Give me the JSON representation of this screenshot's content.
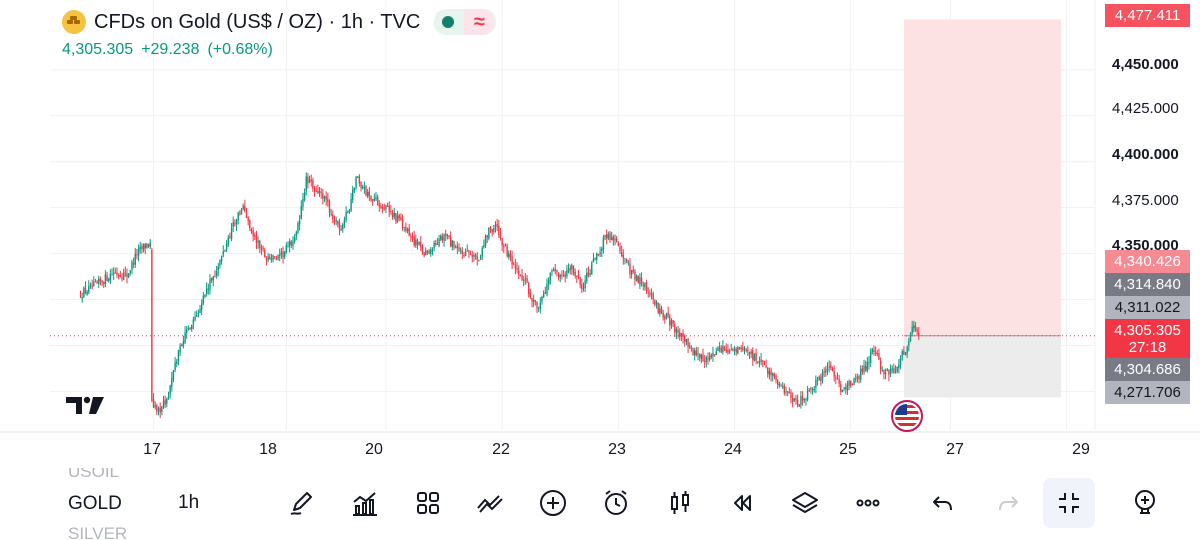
{
  "legend": {
    "title": "CFDs on Gold (US$ / OZ) · 1h · TVC",
    "last": "4,305.305",
    "change": "+29.238",
    "change_pct": "(+0.68%)",
    "wave_symbol": "≈"
  },
  "price_tags": {
    "target": "4,477.411",
    "stop": "4,340.426",
    "t1": "4,314.840",
    "t2": "4,311.022",
    "current": "4,305.305",
    "countdown": "27:18",
    "t3": "4,304.686",
    "t4": "4,271.706"
  },
  "colors": {
    "up": "#089981",
    "down": "#f23645",
    "loss_zone": "#fde2e4",
    "profit_zone": "#ececec",
    "tag_red": "#f7525f",
    "tag_red_light": "#f58a92",
    "tag_gray": "#787b86",
    "tag_gray_light": "#b2b5be"
  },
  "toolbar": {
    "symbol_prev": "USOIL",
    "symbol": "GOLD",
    "symbol_next": "SILVER",
    "timeframe": "1h",
    "tools": [
      "pencil-icon",
      "indicators-icon",
      "layout-grid-icon",
      "patterns-icon",
      "add-icon",
      "alert-icon",
      "candles-icon",
      "replay-icon",
      "layers-icon",
      "more-icon",
      "undo-icon",
      "redo-icon",
      "collapse-icon",
      "add-pin-icon"
    ]
  },
  "chart_data": {
    "type": "candlestick",
    "title": "CFDs on Gold (US$ / OZ) · 1h · TVC",
    "y_ticks": [
      "4,450.000",
      "4,425.000",
      "4,400.000",
      "4,375.000",
      "4,350.000"
    ],
    "y_tick_bold": [
      true,
      false,
      true,
      false,
      true
    ],
    "ylim": [
      4254,
      4488
    ],
    "x_ticks": [
      {
        "label": "17",
        "bar": 44
      },
      {
        "label": "18",
        "bar": 124
      },
      {
        "label": "20",
        "bar": 184
      },
      {
        "label": "22",
        "bar": 254
      },
      {
        "label": "23",
        "bar": 324
      },
      {
        "label": "24",
        "bar": 394
      },
      {
        "label": "25",
        "bar": 464
      },
      {
        "label": "27",
        "bar": 524
      },
      {
        "label": "29",
        "bar": 594
      }
    ],
    "last_price": 4305.305,
    "position": {
      "type": "short",
      "entry": 4305.305,
      "stop": 4477.411,
      "target": 4271.706
    },
    "anchors": [
      [
        0,
        4328
      ],
      [
        10,
        4333
      ],
      [
        20,
        4340
      ],
      [
        28,
        4338
      ],
      [
        34,
        4350
      ],
      [
        40,
        4355
      ],
      [
        42,
        4355
      ],
      [
        43,
        4270
      ],
      [
        46,
        4264
      ],
      [
        52,
        4270
      ],
      [
        60,
        4300
      ],
      [
        70,
        4318
      ],
      [
        76,
        4330
      ],
      [
        84,
        4345
      ],
      [
        92,
        4366
      ],
      [
        98,
        4375
      ],
      [
        104,
        4360
      ],
      [
        112,
        4348
      ],
      [
        120,
        4347
      ],
      [
        130,
        4360
      ],
      [
        136,
        4390
      ],
      [
        142,
        4385
      ],
      [
        148,
        4378
      ],
      [
        156,
        4362
      ],
      [
        162,
        4375
      ],
      [
        166,
        4392
      ],
      [
        172,
        4383
      ],
      [
        182,
        4376
      ],
      [
        190,
        4370
      ],
      [
        198,
        4360
      ],
      [
        208,
        4350
      ],
      [
        214,
        4355
      ],
      [
        220,
        4360
      ],
      [
        226,
        4352
      ],
      [
        234,
        4349
      ],
      [
        240,
        4348
      ],
      [
        246,
        4363
      ],
      [
        250,
        4365
      ],
      [
        256,
        4352
      ],
      [
        262,
        4340
      ],
      [
        268,
        4334
      ],
      [
        274,
        4322
      ],
      [
        278,
        4324
      ],
      [
        284,
        4340
      ],
      [
        290,
        4336
      ],
      [
        296,
        4342
      ],
      [
        302,
        4332
      ],
      [
        312,
        4350
      ],
      [
        316,
        4360
      ],
      [
        322,
        4358
      ],
      [
        326,
        4349
      ],
      [
        332,
        4340
      ],
      [
        340,
        4332
      ],
      [
        348,
        4320
      ],
      [
        356,
        4312
      ],
      [
        362,
        4305
      ],
      [
        370,
        4295
      ],
      [
        378,
        4292
      ],
      [
        386,
        4298
      ],
      [
        394,
        4297
      ],
      [
        400,
        4298
      ],
      [
        408,
        4292
      ],
      [
        416,
        4285
      ],
      [
        424,
        4275
      ],
      [
        432,
        4268
      ],
      [
        438,
        4274
      ],
      [
        446,
        4282
      ],
      [
        452,
        4288
      ],
      [
        458,
        4276
      ],
      [
        466,
        4280
      ],
      [
        474,
        4290
      ],
      [
        478,
        4298
      ],
      [
        484,
        4285
      ],
      [
        490,
        4286
      ],
      [
        496,
        4296
      ],
      [
        502,
        4310
      ],
      [
        505,
        4306
      ]
    ]
  }
}
